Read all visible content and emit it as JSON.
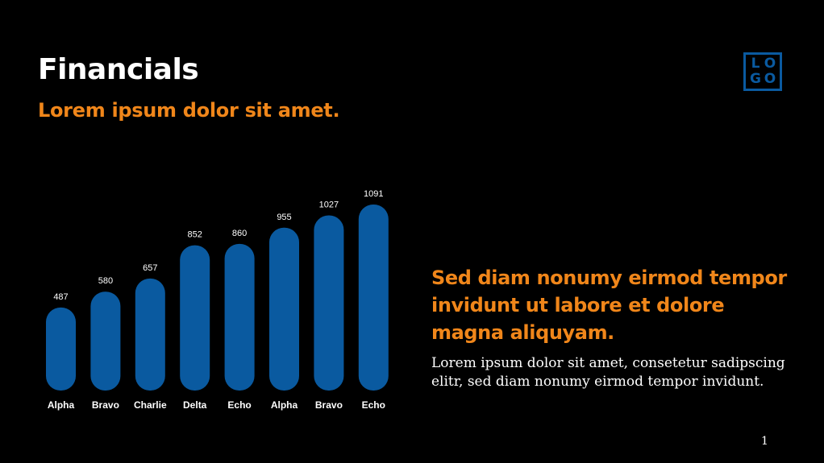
{
  "slide": {
    "title": "Financials",
    "subtitle": "Lorem ipsum dolor sit amet.",
    "logo_letters": [
      "L",
      "O",
      "G",
      "O"
    ],
    "heading": "Sed diam nonumy eirmod tempor invidunt ut labore et dolore magna aliquyam.",
    "body": "Lorem ipsum dolor sit amet, consetetur sadipscing elitr, sed diam nonumy eirmod tempor invidunt.",
    "page_number": "1"
  },
  "colors": {
    "background": "#000000",
    "accent_orange": "#f0861a",
    "bar_blue": "#0a5aa0",
    "text_white": "#ffffff"
  },
  "chart_data": {
    "type": "bar",
    "categories": [
      "Alpha",
      "Bravo",
      "Charlie",
      "Delta",
      "Echo",
      "Alpha",
      "Bravo",
      "Echo"
    ],
    "values": [
      487,
      580,
      657,
      852,
      860,
      955,
      1027,
      1091
    ],
    "title": "",
    "xlabel": "",
    "ylabel": "",
    "grid": false,
    "legend": "none"
  }
}
